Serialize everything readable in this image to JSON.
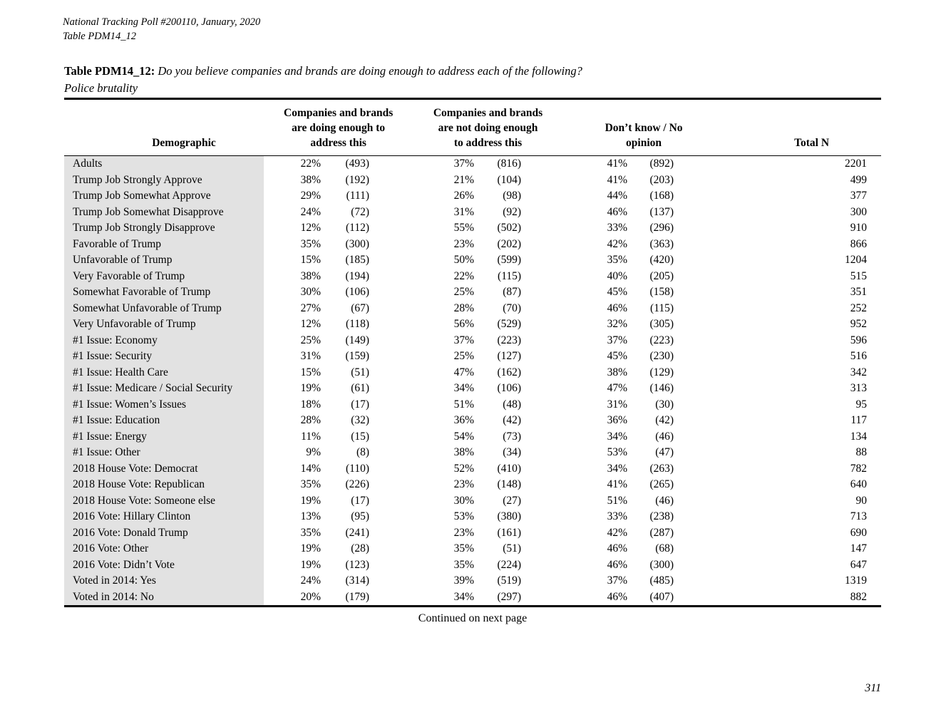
{
  "page": {
    "meta_line1": "National Tracking Poll #200110, January, 2020",
    "meta_line2": "Table PDM14_12",
    "title_label": "Table PDM14_12:",
    "title_question": "Do you believe companies and brands are doing enough to address each of the following?",
    "title_topic": "Police brutality",
    "continued": "Continued on next page",
    "page_number": "311"
  },
  "table": {
    "col_headers": {
      "demographic": "Demographic",
      "doing_enough": [
        "Companies and brands",
        "are doing enough to",
        "address this"
      ],
      "not_doing_enough": [
        "Companies and brands",
        "are not doing enough",
        "to address this"
      ],
      "dont_know": [
        "Don’t know / No",
        "opinion"
      ],
      "total": "Total N"
    },
    "rows": [
      [
        "Adults",
        "22%",
        "(493)",
        "37%",
        "(816)",
        "41%",
        "(892)",
        "2201"
      ],
      [
        "Trump Job Strongly Approve",
        "38%",
        "(192)",
        "21%",
        "(104)",
        "41%",
        "(203)",
        "499"
      ],
      [
        "Trump Job Somewhat Approve",
        "29%",
        "(111)",
        "26%",
        "(98)",
        "44%",
        "(168)",
        "377"
      ],
      [
        "Trump Job Somewhat Disapprove",
        "24%",
        "(72)",
        "31%",
        "(92)",
        "46%",
        "(137)",
        "300"
      ],
      [
        "Trump Job Strongly Disapprove",
        "12%",
        "(112)",
        "55%",
        "(502)",
        "33%",
        "(296)",
        "910"
      ],
      [
        "Favorable of Trump",
        "35%",
        "(300)",
        "23%",
        "(202)",
        "42%",
        "(363)",
        "866"
      ],
      [
        "Unfavorable of Trump",
        "15%",
        "(185)",
        "50%",
        "(599)",
        "35%",
        "(420)",
        "1204"
      ],
      [
        "Very Favorable of Trump",
        "38%",
        "(194)",
        "22%",
        "(115)",
        "40%",
        "(205)",
        "515"
      ],
      [
        "Somewhat Favorable of Trump",
        "30%",
        "(106)",
        "25%",
        "(87)",
        "45%",
        "(158)",
        "351"
      ],
      [
        "Somewhat Unfavorable of Trump",
        "27%",
        "(67)",
        "28%",
        "(70)",
        "46%",
        "(115)",
        "252"
      ],
      [
        "Very Unfavorable of Trump",
        "12%",
        "(118)",
        "56%",
        "(529)",
        "32%",
        "(305)",
        "952"
      ],
      [
        "#1 Issue: Economy",
        "25%",
        "(149)",
        "37%",
        "(223)",
        "37%",
        "(223)",
        "596"
      ],
      [
        "#1 Issue: Security",
        "31%",
        "(159)",
        "25%",
        "(127)",
        "45%",
        "(230)",
        "516"
      ],
      [
        "#1 Issue: Health Care",
        "15%",
        "(51)",
        "47%",
        "(162)",
        "38%",
        "(129)",
        "342"
      ],
      [
        "#1 Issue: Medicare / Social Security",
        "19%",
        "(61)",
        "34%",
        "(106)",
        "47%",
        "(146)",
        "313"
      ],
      [
        "#1 Issue: Women’s Issues",
        "18%",
        "(17)",
        "51%",
        "(48)",
        "31%",
        "(30)",
        "95"
      ],
      [
        "#1 Issue: Education",
        "28%",
        "(32)",
        "36%",
        "(42)",
        "36%",
        "(42)",
        "117"
      ],
      [
        "#1 Issue: Energy",
        "11%",
        "(15)",
        "54%",
        "(73)",
        "34%",
        "(46)",
        "134"
      ],
      [
        "#1 Issue: Other",
        "9%",
        "(8)",
        "38%",
        "(34)",
        "53%",
        "(47)",
        "88"
      ],
      [
        "2018 House Vote: Democrat",
        "14%",
        "(110)",
        "52%",
        "(410)",
        "34%",
        "(263)",
        "782"
      ],
      [
        "2018 House Vote: Republican",
        "35%",
        "(226)",
        "23%",
        "(148)",
        "41%",
        "(265)",
        "640"
      ],
      [
        "2018 House Vote: Someone else",
        "19%",
        "(17)",
        "30%",
        "(27)",
        "51%",
        "(46)",
        "90"
      ],
      [
        "2016 Vote: Hillary Clinton",
        "13%",
        "(95)",
        "53%",
        "(380)",
        "33%",
        "(238)",
        "713"
      ],
      [
        "2016 Vote: Donald Trump",
        "35%",
        "(241)",
        "23%",
        "(161)",
        "42%",
        "(287)",
        "690"
      ],
      [
        "2016 Vote: Other",
        "19%",
        "(28)",
        "35%",
        "(51)",
        "46%",
        "(68)",
        "147"
      ],
      [
        "2016 Vote: Didn’t Vote",
        "19%",
        "(123)",
        "35%",
        "(224)",
        "46%",
        "(300)",
        "647"
      ],
      [
        "Voted in 2014: Yes",
        "24%",
        "(314)",
        "39%",
        "(519)",
        "37%",
        "(485)",
        "1319"
      ],
      [
        "Voted in 2014: No",
        "20%",
        "(179)",
        "34%",
        "(297)",
        "46%",
        "(407)",
        "882"
      ]
    ]
  }
}
